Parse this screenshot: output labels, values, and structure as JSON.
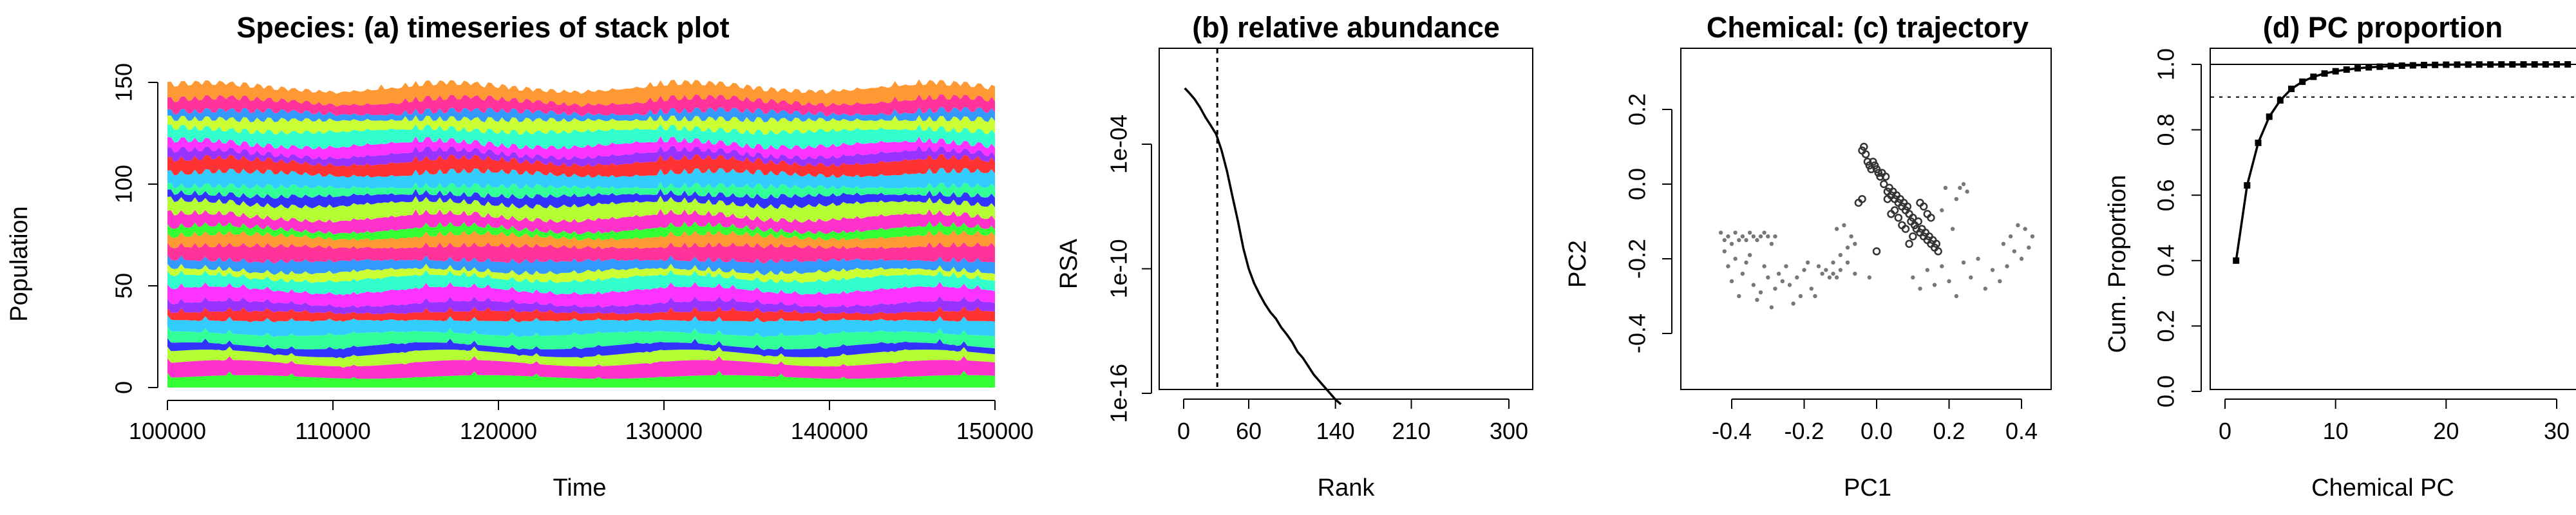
{
  "chart_data": [
    {
      "type": "area",
      "title": "Species: (a) timeseries of stack plot",
      "xlabel": "Time",
      "ylabel": "Population",
      "xlim": [
        100000,
        150000
      ],
      "ylim": [
        0,
        160
      ],
      "xticks": [
        "100000",
        "110000",
        "120000",
        "130000",
        "140000",
        "150000"
      ],
      "yticks": [
        "0",
        "50",
        "100",
        "150"
      ],
      "x_start": 100000,
      "x_end": 150000,
      "total_population_range": [
        140,
        158
      ],
      "grid": false,
      "colors": [
        "#33ff33",
        "#ff33cc",
        "#b3ff33",
        "#3333ff",
        "#33ff99",
        "#33ccff",
        "#ff3333",
        "#9933ff",
        "#ff33ff",
        "#33ffcc",
        "#ccff33",
        "#3399ff",
        "#ff3399",
        "#ff9933"
      ]
    },
    {
      "type": "line",
      "title": "(b) relative abundance",
      "xlabel": "Rank",
      "ylabel": "RSA",
      "xlim": [
        0,
        300
      ],
      "yscale": "log",
      "xticks": [
        "0",
        "60",
        "140",
        "210",
        "300"
      ],
      "yticks": [
        "1e-16",
        "1e-10",
        "1e-04"
      ],
      "vline_x": 31,
      "points": [
        [
          1,
          0.05
        ],
        [
          5,
          0.03
        ],
        [
          10,
          0.015
        ],
        [
          15,
          0.006
        ],
        [
          20,
          0.002
        ],
        [
          25,
          0.0008
        ],
        [
          30,
          0.0003
        ],
        [
          35,
          5e-05
        ],
        [
          40,
          5e-06
        ],
        [
          45,
          3e-07
        ],
        [
          50,
          2e-08
        ],
        [
          55,
          1e-09
        ],
        [
          60,
          1e-10
        ],
        [
          65,
          2e-11
        ],
        [
          70,
          6e-12
        ],
        [
          75,
          2e-12
        ],
        [
          80,
          8e-13
        ],
        [
          85,
          4e-13
        ],
        [
          90,
          1.5e-13
        ],
        [
          95,
          7e-14
        ],
        [
          100,
          3e-14
        ],
        [
          105,
          1e-14
        ],
        [
          110,
          5e-15
        ],
        [
          115,
          2e-15
        ],
        [
          120,
          8e-16
        ],
        [
          125,
          4e-16
        ],
        [
          130,
          2e-16
        ],
        [
          135,
          1e-16
        ],
        [
          140,
          5e-17
        ],
        [
          145,
          3e-17
        ]
      ]
    },
    {
      "type": "scatter",
      "title": "Chemical: (c) trajectory",
      "xlabel": "PC1",
      "ylabel": "PC2",
      "xlim": [
        -0.45,
        0.45
      ],
      "ylim": [
        -0.58,
        0.34
      ],
      "xticks": [
        "-0.4",
        "-0.2",
        "0.0",
        "0.2",
        "0.4"
      ],
      "yticks": [
        "-0.4",
        "-0.2",
        "0.0",
        "0.2"
      ],
      "points": [
        [
          -0.43,
          -0.13
        ],
        [
          -0.42,
          -0.15
        ],
        [
          -0.41,
          -0.14
        ],
        [
          -0.4,
          -0.16
        ],
        [
          -0.39,
          -0.13
        ],
        [
          -0.38,
          -0.15
        ],
        [
          -0.37,
          -0.14
        ],
        [
          -0.36,
          -0.15
        ],
        [
          -0.35,
          -0.13
        ],
        [
          -0.34,
          -0.14
        ],
        [
          -0.33,
          -0.15
        ],
        [
          -0.32,
          -0.14
        ],
        [
          -0.31,
          -0.13
        ],
        [
          -0.3,
          -0.14
        ],
        [
          -0.29,
          -0.16
        ],
        [
          -0.28,
          -0.14
        ],
        [
          -0.42,
          -0.18
        ],
        [
          -0.41,
          -0.22
        ],
        [
          -0.4,
          -0.26
        ],
        [
          -0.39,
          -0.2
        ],
        [
          -0.38,
          -0.3
        ],
        [
          -0.37,
          -0.24
        ],
        [
          -0.36,
          -0.21
        ],
        [
          -0.35,
          -0.19
        ],
        [
          -0.34,
          -0.27
        ],
        [
          -0.33,
          -0.31
        ],
        [
          -0.32,
          -0.29
        ],
        [
          -0.31,
          -0.22
        ],
        [
          -0.3,
          -0.25
        ],
        [
          -0.29,
          -0.33
        ],
        [
          -0.28,
          -0.28
        ],
        [
          -0.27,
          -0.24
        ],
        [
          -0.26,
          -0.26
        ],
        [
          -0.25,
          -0.22
        ],
        [
          -0.24,
          -0.27
        ],
        [
          -0.23,
          -0.32
        ],
        [
          -0.22,
          -0.25
        ],
        [
          -0.21,
          -0.3
        ],
        [
          -0.2,
          -0.23
        ],
        [
          -0.19,
          -0.21
        ],
        [
          -0.18,
          -0.28
        ],
        [
          -0.17,
          -0.3
        ],
        [
          -0.16,
          -0.22
        ],
        [
          -0.15,
          -0.24
        ],
        [
          -0.14,
          -0.23
        ],
        [
          -0.13,
          -0.25
        ],
        [
          -0.12,
          -0.24
        ],
        [
          -0.11,
          -0.25
        ],
        [
          -0.1,
          -0.23
        ],
        [
          -0.11,
          -0.12
        ],
        [
          -0.1,
          -0.19
        ],
        [
          -0.09,
          -0.11
        ],
        [
          -0.08,
          -0.17
        ],
        [
          -0.07,
          -0.14
        ],
        [
          -0.06,
          -0.16
        ],
        [
          -0.05,
          -0.05
        ],
        [
          -0.04,
          -0.04
        ],
        [
          -0.04,
          0.09
        ],
        [
          -0.035,
          0.1
        ],
        [
          -0.03,
          0.08
        ],
        [
          -0.025,
          0.06
        ],
        [
          -0.02,
          0.05
        ],
        [
          -0.015,
          0.04
        ],
        [
          -0.01,
          0.06
        ],
        [
          -0.005,
          0.05
        ],
        [
          0.0,
          0.04
        ],
        [
          0.005,
          0.03
        ],
        [
          0.01,
          0.02
        ],
        [
          0.015,
          0.03
        ],
        [
          0.02,
          0.0
        ],
        [
          0.025,
          0.02
        ],
        [
          0.03,
          -0.02
        ],
        [
          0.035,
          -0.01
        ],
        [
          0.04,
          -0.03
        ],
        [
          0.045,
          -0.02
        ],
        [
          0.05,
          -0.04
        ],
        [
          0.055,
          -0.03
        ],
        [
          0.06,
          -0.05
        ],
        [
          0.065,
          -0.04
        ],
        [
          0.07,
          -0.06
        ],
        [
          0.075,
          -0.05
        ],
        [
          0.08,
          -0.07
        ],
        [
          0.085,
          -0.06
        ],
        [
          0.09,
          -0.08
        ],
        [
          0.095,
          -0.1
        ],
        [
          0.1,
          -0.09
        ],
        [
          0.105,
          -0.11
        ],
        [
          0.11,
          -0.12
        ],
        [
          0.115,
          -0.1
        ],
        [
          0.12,
          -0.13
        ],
        [
          0.125,
          -0.12
        ],
        [
          0.13,
          -0.14
        ],
        [
          0.135,
          -0.13
        ],
        [
          0.14,
          -0.15
        ],
        [
          0.145,
          -0.14
        ],
        [
          0.15,
          -0.16
        ],
        [
          0.155,
          -0.15
        ],
        [
          0.16,
          -0.17
        ],
        [
          0.165,
          -0.16
        ],
        [
          0.17,
          -0.18
        ],
        [
          0.12,
          -0.05
        ],
        [
          0.13,
          -0.06
        ],
        [
          0.14,
          -0.08
        ],
        [
          0.15,
          -0.09
        ],
        [
          0.1,
          -0.14
        ],
        [
          0.09,
          -0.16
        ],
        [
          0.08,
          -0.12
        ],
        [
          0.07,
          -0.11
        ],
        [
          0.06,
          -0.09
        ],
        [
          0.05,
          -0.07
        ],
        [
          0.04,
          -0.08
        ],
        [
          0.03,
          -0.04
        ],
        [
          0.1,
          -0.25
        ],
        [
          0.12,
          -0.28
        ],
        [
          0.14,
          -0.23
        ],
        [
          0.16,
          -0.27
        ],
        [
          0.18,
          -0.22
        ],
        [
          0.2,
          -0.26
        ],
        [
          0.22,
          -0.3
        ],
        [
          0.24,
          -0.21
        ],
        [
          0.26,
          -0.25
        ],
        [
          0.28,
          -0.2
        ],
        [
          0.3,
          -0.28
        ],
        [
          0.32,
          -0.23
        ],
        [
          0.34,
          -0.26
        ],
        [
          0.36,
          -0.22
        ],
        [
          0.38,
          -0.18
        ],
        [
          0.4,
          -0.2
        ],
        [
          0.42,
          -0.17
        ],
        [
          0.41,
          -0.12
        ],
        [
          0.39,
          -0.11
        ],
        [
          0.37,
          -0.14
        ],
        [
          0.35,
          -0.16
        ],
        [
          0.43,
          -0.14
        ],
        [
          0.21,
          -0.12
        ],
        [
          0.22,
          -0.04
        ],
        [
          0.23,
          -0.01
        ],
        [
          0.24,
          0.0
        ],
        [
          0.19,
          -0.01
        ],
        [
          0.18,
          -0.07
        ],
        [
          0.25,
          -0.02
        ],
        [
          -0.06,
          -0.24
        ],
        [
          -0.08,
          -0.21
        ],
        [
          -0.12,
          -0.21
        ],
        [
          -0.02,
          -0.25
        ],
        [
          0.0,
          -0.18
        ]
      ]
    },
    {
      "type": "line",
      "title": "(d) PC proportion",
      "xlabel": "Chemical PC",
      "ylabel": "Cum. Proportion",
      "xlim": [
        0,
        31
      ],
      "ylim": [
        0,
        1.05
      ],
      "xticks": [
        "0",
        "10",
        "20",
        "30"
      ],
      "yticks": [
        "0.0",
        "0.2",
        "0.4",
        "0.6",
        "0.8",
        "1.0"
      ],
      "hline_solid": 1.0,
      "hline_dashed": 0.9,
      "x": [
        1,
        2,
        3,
        4,
        5,
        6,
        7,
        8,
        9,
        10,
        11,
        12,
        13,
        14,
        15,
        16,
        17,
        18,
        19,
        20,
        21,
        22,
        23,
        24,
        25,
        26,
        27,
        28,
        29,
        30,
        31
      ],
      "values": [
        0.4,
        0.63,
        0.76,
        0.84,
        0.89,
        0.925,
        0.947,
        0.962,
        0.972,
        0.979,
        0.984,
        0.988,
        0.991,
        0.993,
        0.995,
        0.996,
        0.997,
        0.998,
        0.9985,
        0.999,
        0.9993,
        0.9995,
        0.9996,
        0.9997,
        0.9998,
        0.9998,
        0.9999,
        0.9999,
        0.9999,
        1.0,
        1.0
      ]
    }
  ]
}
